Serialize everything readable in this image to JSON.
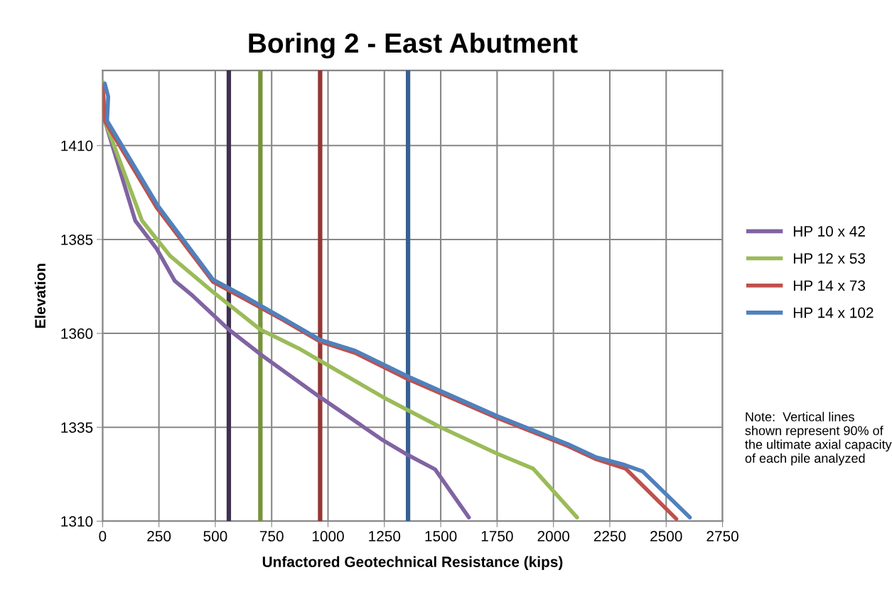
{
  "chart_data": {
    "type": "line",
    "title": "Boring 2 - East Abutment",
    "xlabel": "Unfactored Geotechnical Resistance (kips)",
    "ylabel": "Elevation",
    "xlim": [
      0,
      2750
    ],
    "xticks": [
      0,
      250,
      500,
      750,
      1000,
      1250,
      1500,
      1750,
      2000,
      2250,
      2500,
      2750
    ],
    "ylim": [
      1310,
      1430
    ],
    "yticks": [
      1310,
      1335,
      1360,
      1385,
      1410
    ],
    "grid": true,
    "legend": "right",
    "marker": "none",
    "line_style": "solid",
    "series": [
      {
        "name": "HP 10 x 42",
        "color": "#8064a2",
        "x": [
          0,
          10,
          145,
          240,
          320,
          400,
          560,
          710,
          965,
          1245,
          1355,
          1475,
          1625
        ],
        "values": [
          1426,
          1416.6,
          1390,
          1382.5,
          1374,
          1370,
          1361,
          1354,
          1343,
          1331.5,
          1327.6,
          1323.8,
          1311
        ]
      },
      {
        "name": "HP 12 x 53",
        "color": "#9bbb59",
        "x": [
          0,
          10,
          175,
          300,
          490,
          700,
          870,
          1245,
          1500,
          1750,
          1910,
          2105
        ],
        "values": [
          1427,
          1416.6,
          1390,
          1380.6,
          1371,
          1361,
          1356,
          1343,
          1335,
          1328,
          1324,
          1311
        ]
      },
      {
        "name": "HP 14 x 73",
        "color": "#c0504d",
        "x": [
          0,
          10,
          240,
          490,
          630,
          800,
          965,
          1120,
          1355,
          1750,
          2065,
          2190,
          2320,
          2545
        ],
        "values": [
          1426,
          1416.6,
          1393.5,
          1373.7,
          1369.2,
          1363.6,
          1357.8,
          1354.8,
          1347.8,
          1337.5,
          1330,
          1326.5,
          1324,
          1310.6
        ]
      },
      {
        "name": "HP 14 x 102",
        "color": "#4f81bd",
        "x": [
          10,
          25,
          20,
          245,
          490,
          630,
          800,
          965,
          1120,
          1355,
          1750,
          2065,
          2190,
          2315,
          2395,
          2605
        ],
        "values": [
          1426.5,
          1423,
          1416.6,
          1394,
          1374.3,
          1369.8,
          1364,
          1358.3,
          1355.4,
          1348.5,
          1338,
          1330.5,
          1327,
          1325,
          1323.3,
          1311
        ]
      }
    ],
    "ref_lines": [
      {
        "axis": "x",
        "value": 560,
        "color": "#3f3151"
      },
      {
        "axis": "x",
        "value": 700,
        "color": "#77933c"
      },
      {
        "axis": "x",
        "value": 965,
        "color": "#953735"
      },
      {
        "axis": "x",
        "value": 1355,
        "color": "#376092"
      }
    ],
    "annotations": [
      "Note:  Vertical lines shown represent 90% of the ultimate axial capacity of each pile analyzed"
    ]
  }
}
